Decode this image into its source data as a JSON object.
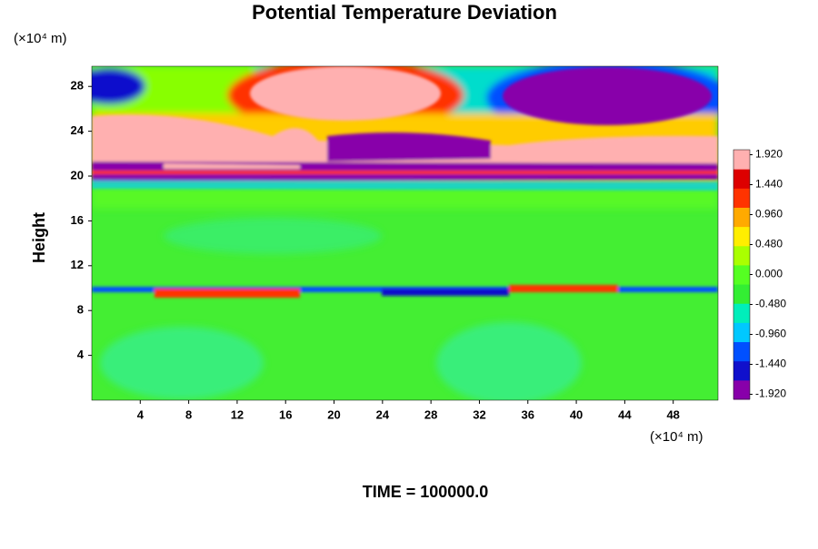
{
  "chart_data": {
    "type": "heatmap",
    "title": "Potential Temperature Deviation",
    "y_label": "Height",
    "y_unit": "(×10⁴ m)",
    "x_unit": "(×10⁴ m)",
    "annotation": "TIME = 100000.0",
    "xlim": [
      0,
      51.7
    ],
    "xticks": [
      4,
      8,
      12,
      16,
      20,
      24,
      28,
      32,
      36,
      40,
      44,
      48
    ],
    "ylim": [
      0,
      29.8
    ],
    "yticks": [
      4,
      8,
      12,
      16,
      20,
      24,
      28
    ],
    "colorbar": {
      "lim": [
        -2,
        2
      ],
      "ticks": [
        {
          "value": -1.92,
          "label": "-1.920"
        },
        {
          "value": -1.44,
          "label": "-1.440"
        },
        {
          "value": -0.96,
          "label": "-0.960"
        },
        {
          "value": -0.48,
          "label": "-0.480"
        },
        {
          "value": 0,
          "label": "0.000"
        },
        {
          "value": 0.48,
          "label": "0.480"
        },
        {
          "value": 0.96,
          "label": "0.960"
        },
        {
          "value": 1.44,
          "label": "1.440"
        },
        {
          "value": 1.92,
          "label": "1.920"
        }
      ],
      "colors": [
        "#8800aa",
        "#1010cc",
        "#0050ff",
        "#00c8ff",
        "#00eebb",
        "#33ee33",
        "#55ff22",
        "#aaff00",
        "#ffee00",
        "#ffaa00",
        "#ff3300",
        "#dd0000",
        "#ffb0b0"
      ]
    }
  }
}
